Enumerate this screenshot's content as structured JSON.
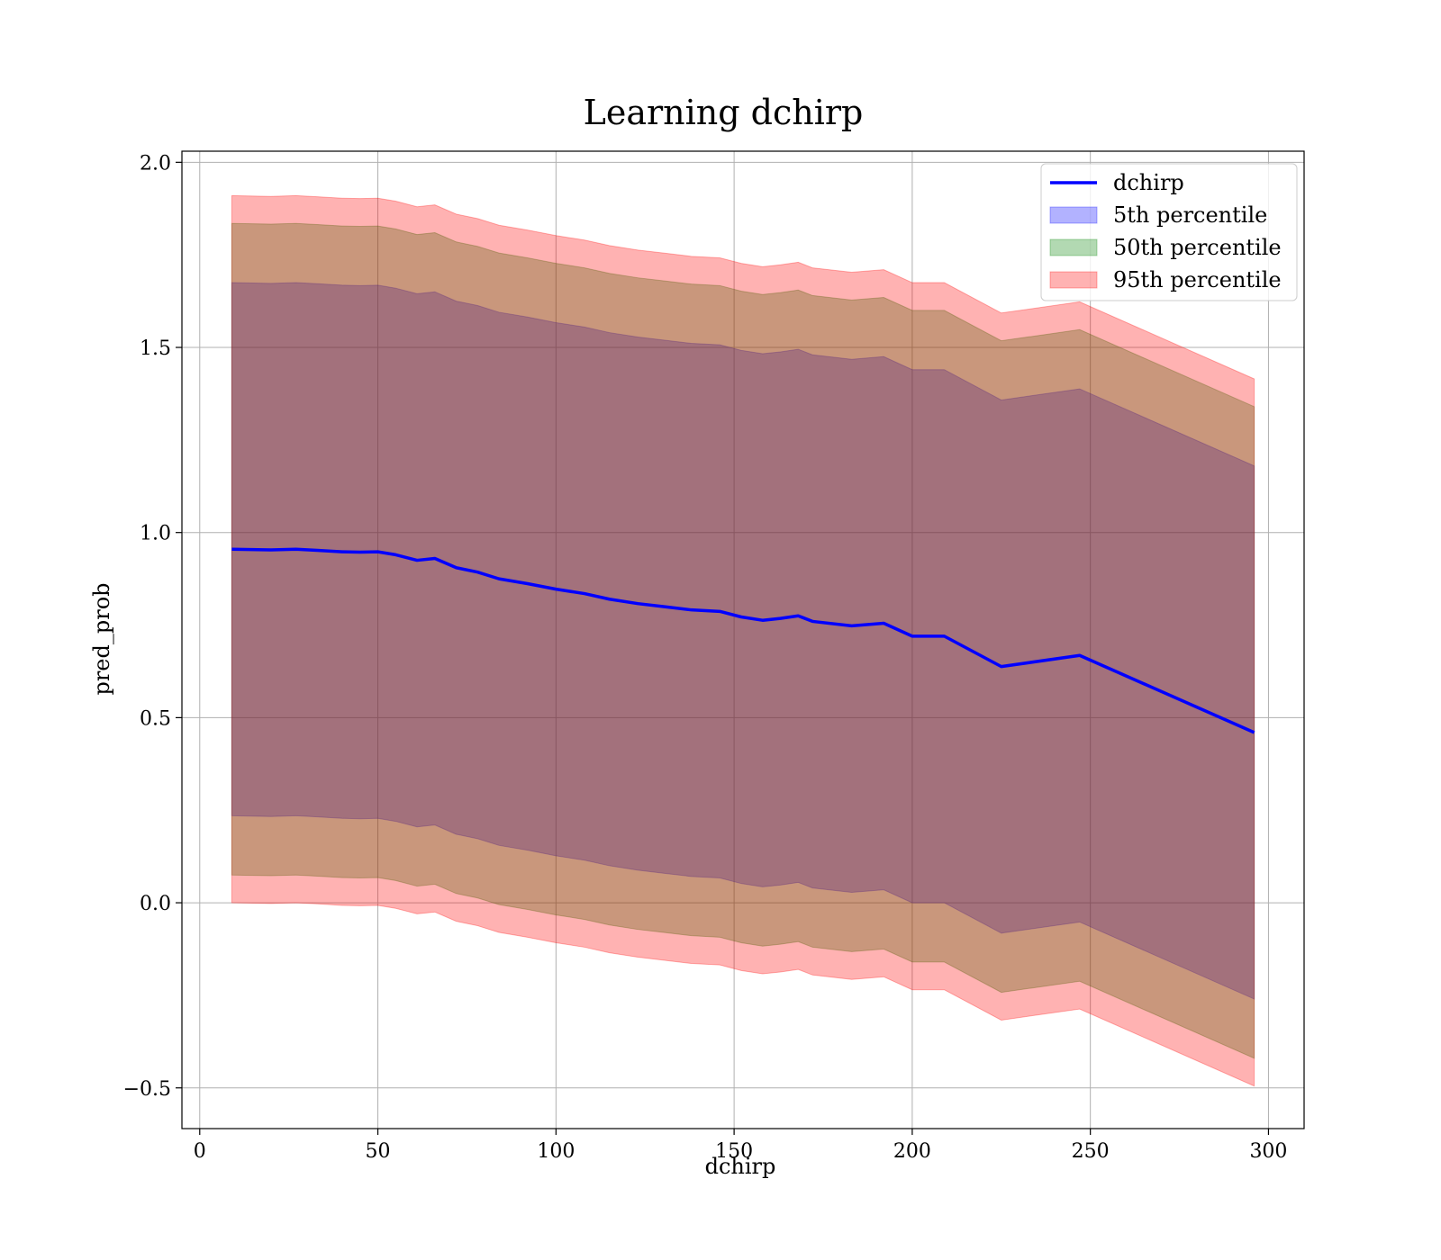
{
  "chart_data": {
    "type": "line",
    "title": "Learning dchirp",
    "xlabel": "dchirp",
    "ylabel": "pred_prob",
    "xlim": [
      -5,
      310
    ],
    "ylim": [
      -0.61,
      2.03
    ],
    "xticks": [
      0,
      50,
      100,
      150,
      200,
      250,
      300
    ],
    "yticks": [
      -0.5,
      0.0,
      0.5,
      1.0,
      1.5,
      2.0
    ],
    "xtick_labels": [
      "0",
      "50",
      "100",
      "150",
      "200",
      "250",
      "300"
    ],
    "ytick_labels": [
      "−0.5",
      "0.0",
      "0.5",
      "1.0",
      "1.5",
      "2.0"
    ],
    "grid": true,
    "legend_position": "top-right",
    "x": [
      9,
      20,
      27,
      33,
      40,
      45,
      50,
      55,
      61,
      66,
      72,
      78,
      84,
      92,
      100,
      108,
      115,
      123,
      131,
      138,
      146,
      152,
      158,
      163,
      168,
      172,
      183,
      192,
      200,
      209,
      225,
      247,
      296
    ],
    "series": [
      {
        "name": "dchirp",
        "kind": "line",
        "color": "#0000ff",
        "values": [
          0.955,
          0.953,
          0.955,
          0.952,
          0.948,
          0.947,
          0.948,
          0.94,
          0.925,
          0.93,
          0.905,
          0.893,
          0.875,
          0.862,
          0.847,
          0.835,
          0.82,
          0.808,
          0.799,
          0.791,
          0.787,
          0.772,
          0.763,
          0.768,
          0.775,
          0.76,
          0.748,
          0.755,
          0.72,
          0.72,
          0.638,
          0.668,
          0.46
        ]
      },
      {
        "name": "5th percentile",
        "kind": "band",
        "color": "#0000ff",
        "lower": [
          0.235,
          0.233,
          0.235,
          0.232,
          0.228,
          0.227,
          0.228,
          0.22,
          0.205,
          0.21,
          0.185,
          0.173,
          0.155,
          0.142,
          0.127,
          0.115,
          0.1,
          0.088,
          0.079,
          0.071,
          0.067,
          0.052,
          0.043,
          0.048,
          0.055,
          0.04,
          0.028,
          0.035,
          0.0,
          0.0,
          -0.082,
          -0.052,
          -0.26
        ],
        "upper": [
          1.675,
          1.673,
          1.675,
          1.672,
          1.668,
          1.667,
          1.668,
          1.66,
          1.645,
          1.65,
          1.625,
          1.613,
          1.595,
          1.582,
          1.567,
          1.555,
          1.54,
          1.528,
          1.519,
          1.511,
          1.507,
          1.492,
          1.483,
          1.488,
          1.495,
          1.48,
          1.468,
          1.475,
          1.44,
          1.44,
          1.358,
          1.388,
          1.18
        ]
      },
      {
        "name": "50th percentile",
        "kind": "band",
        "color": "#008000",
        "lower": [
          0.075,
          0.073,
          0.075,
          0.072,
          0.068,
          0.067,
          0.068,
          0.06,
          0.045,
          0.05,
          0.025,
          0.013,
          -0.005,
          -0.018,
          -0.033,
          -0.045,
          -0.06,
          -0.072,
          -0.081,
          -0.089,
          -0.093,
          -0.108,
          -0.117,
          -0.112,
          -0.105,
          -0.12,
          -0.132,
          -0.125,
          -0.16,
          -0.16,
          -0.242,
          -0.212,
          -0.42
        ],
        "upper": [
          1.835,
          1.833,
          1.835,
          1.832,
          1.828,
          1.827,
          1.828,
          1.82,
          1.805,
          1.81,
          1.785,
          1.773,
          1.755,
          1.742,
          1.727,
          1.715,
          1.7,
          1.688,
          1.679,
          1.671,
          1.667,
          1.652,
          1.643,
          1.648,
          1.655,
          1.64,
          1.628,
          1.635,
          1.6,
          1.6,
          1.518,
          1.548,
          1.34
        ]
      },
      {
        "name": "95th percentile",
        "kind": "band",
        "color": "#ff0000",
        "lower": [
          0.0,
          -0.002,
          0.0,
          -0.003,
          -0.007,
          -0.008,
          -0.007,
          -0.015,
          -0.03,
          -0.025,
          -0.05,
          -0.062,
          -0.08,
          -0.093,
          -0.108,
          -0.12,
          -0.135,
          -0.147,
          -0.156,
          -0.164,
          -0.168,
          -0.183,
          -0.192,
          -0.187,
          -0.18,
          -0.195,
          -0.207,
          -0.2,
          -0.235,
          -0.235,
          -0.317,
          -0.287,
          -0.495
        ],
        "upper": [
          1.91,
          1.908,
          1.91,
          1.907,
          1.903,
          1.902,
          1.903,
          1.895,
          1.88,
          1.885,
          1.86,
          1.848,
          1.83,
          1.817,
          1.802,
          1.79,
          1.775,
          1.763,
          1.754,
          1.746,
          1.742,
          1.727,
          1.718,
          1.723,
          1.73,
          1.715,
          1.703,
          1.71,
          1.675,
          1.675,
          1.593,
          1.623,
          1.415
        ]
      }
    ]
  }
}
